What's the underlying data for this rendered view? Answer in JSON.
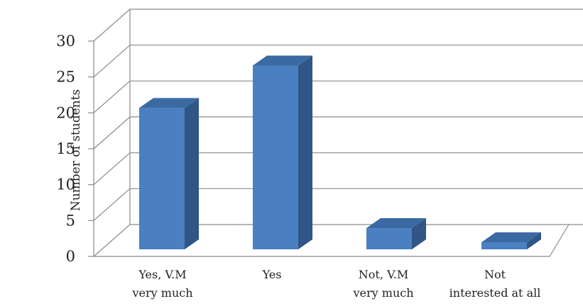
{
  "chart_data": {
    "type": "bar",
    "style": "3d-column",
    "ylabel": "Number of students",
    "xlabel": "",
    "ylim": [
      0,
      30
    ],
    "yticks": [
      0,
      5,
      10,
      15,
      20,
      25,
      30
    ],
    "grid": true,
    "categories": [
      [
        "Yes, V.M",
        "very much"
      ],
      [
        "Yes"
      ],
      [
        "Not, V.M",
        "very much"
      ],
      [
        "Not",
        "interested at all"
      ]
    ],
    "values": [
      20,
      26,
      3,
      1
    ],
    "colors": {
      "bar_front": "#4a7fc1",
      "bar_side": "#2f5686",
      "bar_top": "#3b6aa3",
      "gridline": "#8a8a8a"
    }
  }
}
